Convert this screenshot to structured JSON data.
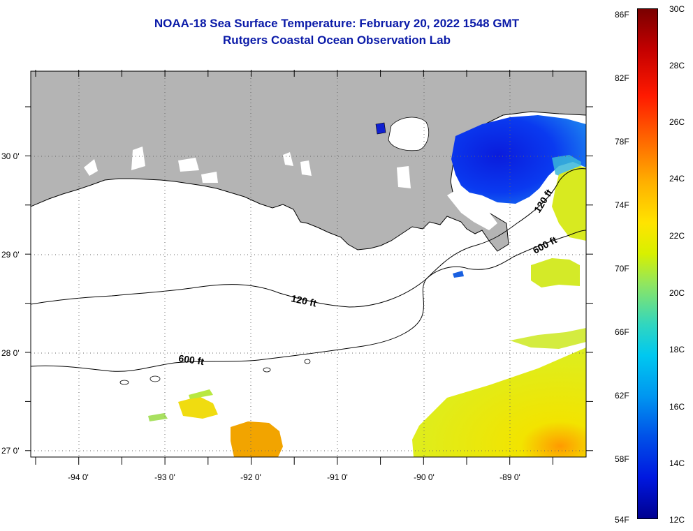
{
  "header": {
    "title": "NOAA-18 Sea Surface Temperature:  February 20, 2022 1548 GMT",
    "subtitle": "Rutgers Coastal Ocean Observation Lab"
  },
  "map": {
    "lon_labels": [
      "-94 0'",
      "-93 0'",
      "-92 0'",
      "-91 0'",
      "-90 0'",
      "-89 0'"
    ],
    "lat_labels": [
      "30 0'",
      "29 0'",
      "28 0'",
      "27 0'"
    ],
    "lon_range": [
      -94.5,
      -88.2
    ],
    "lat_range": [
      26.95,
      30.85
    ],
    "land_color": "#b4b4b4",
    "no_data_color": "#ffffff",
    "contour_labels": {
      "c120_left": "120 ft",
      "c120_right": "120 ft",
      "c600_left": "600 ft",
      "c600_right": "600 ft"
    }
  },
  "colorbar": {
    "fahrenheit_labels": [
      "86F",
      "82F",
      "78F",
      "74F",
      "70F",
      "66F",
      "62F",
      "58F",
      "54F"
    ],
    "celsius_labels": [
      "30C",
      "28C",
      "26C",
      "24C",
      "22C",
      "20C",
      "18C",
      "16C",
      "14C",
      "12C"
    ],
    "range_c": [
      12,
      30
    ],
    "range_f": [
      54,
      86
    ]
  }
}
